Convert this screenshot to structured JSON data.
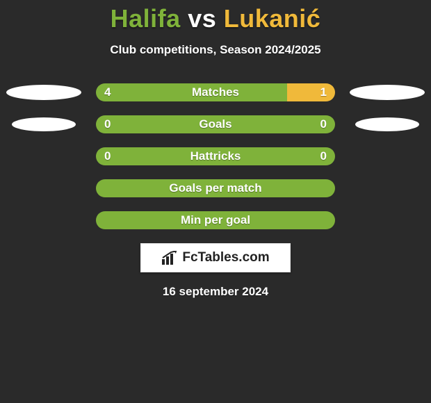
{
  "title": {
    "player1": "Halifa",
    "vs": "vs",
    "player2": "Lukanić"
  },
  "subtitle": "Club competitions, Season 2024/2025",
  "colors": {
    "player1": "#7fb23a",
    "player2": "#f0b93a",
    "background": "#2a2a2a",
    "oval": "#ffffff",
    "logo_bg": "#ffffff",
    "logo_text": "#222222"
  },
  "bar": {
    "height": 26,
    "radius": 13,
    "row_gap": 20,
    "label_fontsize": 17
  },
  "stats": [
    {
      "category": "Matches",
      "left_value": "4",
      "right_value": "1",
      "left_pct": 80,
      "right_pct": 20,
      "left_oval_w": 108,
      "left_oval_h": 22,
      "right_oval_w": 108,
      "right_oval_h": 22
    },
    {
      "category": "Goals",
      "left_value": "0",
      "right_value": "0",
      "left_pct": 100,
      "right_pct": 0,
      "left_oval_w": 92,
      "left_oval_h": 20,
      "right_oval_w": 92,
      "right_oval_h": 20
    },
    {
      "category": "Hattricks",
      "left_value": "0",
      "right_value": "0",
      "left_pct": 100,
      "right_pct": 0,
      "left_oval_w": 0,
      "left_oval_h": 0,
      "right_oval_w": 0,
      "right_oval_h": 0
    },
    {
      "category": "Goals per match",
      "left_value": "",
      "right_value": "",
      "left_pct": 100,
      "right_pct": 0,
      "left_oval_w": 0,
      "left_oval_h": 0,
      "right_oval_w": 0,
      "right_oval_h": 0
    },
    {
      "category": "Min per goal",
      "left_value": "",
      "right_value": "",
      "left_pct": 100,
      "right_pct": 0,
      "left_oval_w": 0,
      "left_oval_h": 0,
      "right_oval_w": 0,
      "right_oval_h": 0
    }
  ],
  "logo": {
    "text": "FcTables.com"
  },
  "date": "16 september 2024"
}
